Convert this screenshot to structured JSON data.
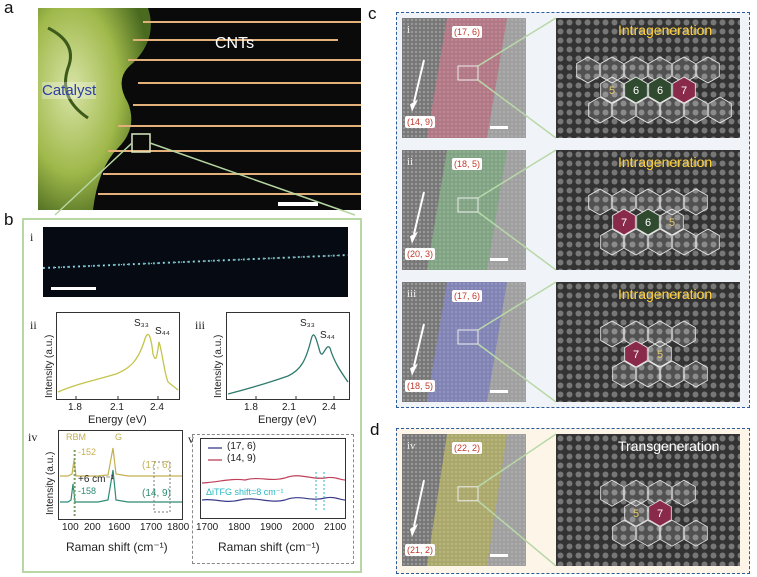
{
  "panels": {
    "a": "a",
    "b": "b",
    "c": "c",
    "d": "d"
  },
  "panel_a": {
    "cnts_label": "CNTs",
    "catalyst_label": "Catalyst"
  },
  "panel_b": {
    "sub_i": "i",
    "sub_ii": "ii",
    "sub_iii": "iii",
    "sub_iv": "iv",
    "sub_v": "v",
    "ii": {
      "ylabel": "Intensity (a.u.)",
      "xlabel": "Energy (eV)",
      "ticks": [
        "1.8",
        "2.1",
        "2.4"
      ],
      "peak1": "S₃₃",
      "peak2": "S₄₄"
    },
    "iii": {
      "ylabel": "Intensity (a.u.)",
      "xlabel": "Energy (eV)",
      "ticks": [
        "1.8",
        "2.1",
        "2.4"
      ],
      "peak1": "S₃₃",
      "peak2": "S₄₄"
    },
    "iv": {
      "ylabel": "Intensity (a.u.)",
      "xlabel": "Raman shift (cm⁻¹)",
      "ticks": [
        "100",
        "200",
        "1600",
        "1700",
        "1800"
      ],
      "rbm": "RBM",
      "g": "G",
      "v1": "-152",
      "v2": "-158",
      "shift": "+6 cm⁻¹",
      "s1": "(17, 6)",
      "s2": "(14, 9)",
      "s1_color": "#b8a24a",
      "s2_color": "#2e8b74"
    },
    "v": {
      "xlabel": "Raman shift (cm⁻¹)",
      "ticks": [
        "1700",
        "1800",
        "1900",
        "2000",
        "2100"
      ],
      "legend1": "(17, 6)",
      "legend2": "(14, 9)",
      "annot": "ΔiTFG shift=8 cm⁻¹",
      "l1_color": "#3a3a8c",
      "l2_color": "#c0405a"
    }
  },
  "panel_c": {
    "rows": [
      {
        "roman": "i",
        "top_tag": "(17, 6)",
        "bottom_tag": "(14, 9)",
        "label": "Intrageneration",
        "tint": "#e07a90",
        "rings": [
          "5",
          "6",
          "6",
          "7"
        ]
      },
      {
        "roman": "ii",
        "top_tag": "(18, 5)",
        "bottom_tag": "(20, 3)",
        "label": "Intrageneration",
        "tint": "#8bc98f",
        "rings": [
          "7",
          "6",
          "5"
        ]
      },
      {
        "roman": "iii",
        "top_tag": "(17, 6)",
        "bottom_tag": "(18, 5)",
        "label": "Intrageneration",
        "tint": "#8a8ee6",
        "rings": [
          "7",
          "5"
        ]
      }
    ]
  },
  "panel_d": {
    "roman": "iv",
    "top_tag": "(22, 2)",
    "bottom_tag": "(21, 2)",
    "label": "Transgeneration",
    "tint": "#d6d066",
    "rings": [
      "5",
      "7"
    ]
  }
}
